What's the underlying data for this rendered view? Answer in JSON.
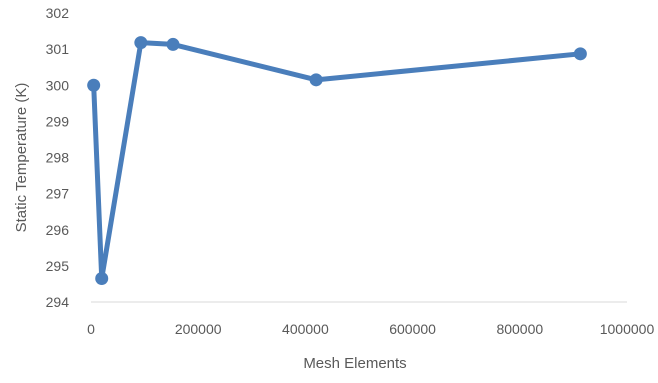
{
  "chart_data": {
    "type": "scatter",
    "title": "",
    "xlabel": "Mesh Elements",
    "ylabel": "Static Temperature (K)",
    "xlim": [
      0,
      1000000
    ],
    "ylim": [
      294,
      302
    ],
    "x_ticks": [
      {
        "value": 0,
        "label": "0"
      },
      {
        "value": 200000,
        "label": "200000"
      },
      {
        "value": 400000,
        "label": "400000"
      },
      {
        "value": 600000,
        "label": "600000"
      },
      {
        "value": 800000,
        "label": "800000"
      },
      {
        "value": 1000000,
        "label": "1000000"
      }
    ],
    "y_ticks": [
      {
        "value": 294,
        "label": "294"
      },
      {
        "value": 295,
        "label": "295"
      },
      {
        "value": 296,
        "label": "296"
      },
      {
        "value": 297,
        "label": "297"
      },
      {
        "value": 298,
        "label": "298"
      },
      {
        "value": 299,
        "label": "299"
      },
      {
        "value": 300,
        "label": "300"
      },
      {
        "value": 301,
        "label": "301"
      },
      {
        "value": 302,
        "label": "302"
      }
    ],
    "grid": false,
    "legend": "none",
    "series": [
      {
        "color": "#4a7ebb",
        "x": [
          5000,
          20000,
          93000,
          153000,
          420000,
          913000
        ],
        "y": [
          300.0,
          294.65,
          301.18,
          301.13,
          300.15,
          300.87
        ]
      }
    ]
  }
}
